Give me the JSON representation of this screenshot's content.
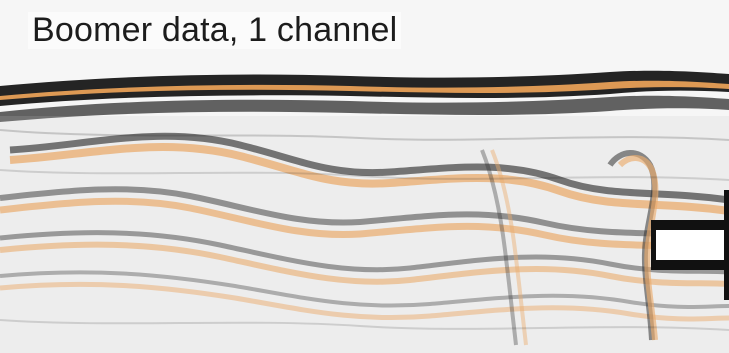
{
  "title": "Boomer data, 1 channel",
  "colors": {
    "background": "#f6f6f6",
    "peak": "#111111",
    "trough": "#f2a65a",
    "noise": "#c9c9c9",
    "marker": "#111111",
    "marker_fill": "#ffffff"
  },
  "icons": {
    "arrow_marker": "right-notch-arrow-icon"
  }
}
